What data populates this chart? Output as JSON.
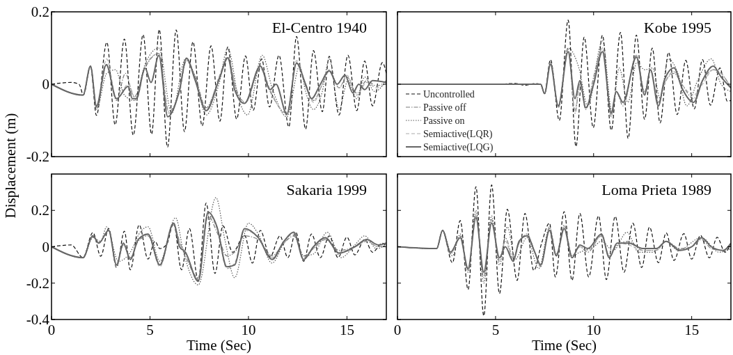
{
  "chart_data": [
    {
      "type": "line",
      "title": "El-Centro 1940",
      "ylabel": "Displacement (m)",
      "xlim": [
        0,
        17
      ],
      "ylim": [
        -0.2,
        0.2
      ],
      "xticks": [
        0,
        5,
        10,
        15
      ],
      "yticks": [
        -0.2,
        0,
        0.2
      ],
      "tick_labels": "y",
      "legend": false,
      "grid": false,
      "series": [
        {
          "color": "#111111",
          "line_style": "dashed",
          "x": [
            0,
            1.0,
            1.4,
            1.62,
            1.98,
            2.28,
            2.81,
            3.23,
            3.7,
            4.15,
            4.65,
            5.08,
            5.47,
            5.89,
            6.33,
            6.75,
            7.18,
            7.65,
            8.1,
            8.55,
            8.95,
            9.4,
            9.85,
            10.24,
            10.67,
            11.07,
            11.55,
            12.05,
            12.44,
            12.9,
            13.3,
            13.75,
            14.1,
            14.6,
            15.05,
            15.5,
            15.9,
            16.3,
            16.8,
            17
          ],
          "values": [
            0,
            0.005,
            0,
            -0.03,
            0.05,
            -0.086,
            0.116,
            -0.112,
            0.125,
            -0.141,
            0.137,
            -0.138,
            0.151,
            -0.174,
            0.15,
            -0.131,
            0.117,
            -0.115,
            0.106,
            -0.102,
            0.103,
            -0.096,
            0.078,
            -0.072,
            0.07,
            -0.063,
            0.08,
            -0.118,
            0.132,
            -0.124,
            0.093,
            -0.076,
            0.077,
            -0.085,
            0.08,
            -0.073,
            0.064,
            -0.06,
            0.06,
            0.03
          ]
        },
        {
          "color": "#7a7a7a",
          "line_style": "dashdot",
          "x": [
            0,
            1.6,
            1.98,
            2.28,
            2.8,
            3.3,
            3.75,
            4.2,
            4.75,
            5.45,
            5.95,
            6.5,
            6.85,
            7.3,
            7.85,
            8.5,
            8.95,
            9.4,
            9.85,
            10.6,
            11.1,
            11.95,
            12.44,
            12.9,
            13.3,
            13.75,
            14.1,
            14.6,
            15.0,
            15.5,
            16.0,
            16.5,
            17
          ],
          "values": [
            0,
            -0.03,
            0.05,
            -0.07,
            0.055,
            -0.045,
            0.03,
            -0.035,
            0.045,
            0.085,
            -0.075,
            -0.02,
            0.065,
            0.02,
            -0.065,
            0.015,
            0.07,
            -0.02,
            -0.05,
            0.045,
            -0.02,
            -0.08,
            0.06,
            -0.005,
            -0.045,
            0.0,
            0.04,
            -0.01,
            0.02,
            -0.025,
            0.01,
            -0.005,
            0.01
          ]
        },
        {
          "color": "#555555",
          "line_style": "dotted",
          "x": [
            0,
            1.6,
            1.98,
            2.3,
            2.8,
            3.25,
            3.7,
            4.2,
            4.75,
            5.45,
            6.1,
            6.8,
            7.3,
            7.85,
            8.5,
            8.95,
            9.5,
            9.95,
            10.7,
            11.2,
            11.95,
            12.6,
            12.9,
            13.3,
            13.75,
            14.1,
            14.6,
            15.05,
            15.5,
            15.9,
            16.4,
            17
          ],
          "values": [
            0,
            -0.03,
            0.05,
            -0.065,
            0.03,
            0.04,
            -0.03,
            -0.045,
            0.055,
            0.1,
            -0.08,
            0.07,
            0.02,
            -0.085,
            0,
            0.1,
            -0.04,
            -0.085,
            0.08,
            -0.01,
            -0.09,
            0.05,
            -0.02,
            -0.07,
            -0.02,
            0.07,
            -0.07,
            0.01,
            -0.04,
            0.02,
            -0.02,
            0.01
          ]
        },
        {
          "color": "#aaaaaa",
          "line_style": "dashed",
          "x": [
            0,
            1.6,
            1.98,
            2.28,
            2.8,
            3.3,
            3.9,
            4.3,
            4.75,
            5.45,
            5.95,
            6.5,
            6.85,
            7.3,
            7.85,
            8.5,
            8.95,
            9.4,
            9.85,
            10.6,
            11.1,
            11.95,
            12.44,
            12.9,
            13.3,
            13.75,
            14.1,
            14.6,
            15.0,
            15.5,
            16.0,
            16.5,
            17
          ],
          "values": [
            0,
            -0.03,
            0.05,
            -0.065,
            0.07,
            -0.04,
            0.0,
            -0.045,
            0.05,
            0.085,
            -0.08,
            -0.02,
            0.07,
            0.015,
            -0.07,
            0.02,
            0.075,
            -0.015,
            -0.05,
            0.05,
            -0.015,
            -0.085,
            0.065,
            0.0,
            -0.05,
            0.0,
            0.035,
            -0.01,
            0.025,
            -0.03,
            0.005,
            -0.01,
            0.005
          ]
        },
        {
          "color": "#666666",
          "line_style": "solid",
          "x": [
            0,
            1.6,
            1.98,
            2.28,
            2.78,
            3.3,
            3.9,
            4.1,
            4.3,
            4.75,
            5.05,
            5.45,
            5.9,
            6.5,
            6.85,
            7.3,
            7.85,
            8.55,
            8.95,
            9.3,
            9.8,
            10.6,
            11.1,
            11.4,
            11.95,
            12.44,
            12.9,
            13.2,
            13.65,
            14.1,
            14.5,
            14.9,
            15.3,
            15.6,
            15.9,
            16.3,
            17
          ],
          "values": [
            0,
            -0.03,
            0.05,
            -0.06,
            0.054,
            -0.04,
            -0.006,
            -0.04,
            -0.04,
            0.044,
            0.005,
            0.08,
            -0.09,
            -0.015,
            0.072,
            0.01,
            -0.073,
            0.02,
            0.073,
            -0.015,
            -0.053,
            0.05,
            -0.015,
            0,
            -0.083,
            0.058,
            0,
            -0.04,
            0,
            0.037,
            0,
            0.025,
            -0.024,
            0,
            -0.015,
            0.01,
            0.005
          ]
        }
      ]
    },
    {
      "type": "line",
      "title": "Kobe 1995",
      "xlim": [
        0,
        17
      ],
      "ylim": [
        -0.2,
        0.2
      ],
      "xticks": [
        0,
        5,
        10,
        15
      ],
      "yticks": [
        -0.2,
        0,
        0.2
      ],
      "tick_labels": false,
      "legend": "bottom left",
      "grid": false,
      "series": [
        {
          "name": "Uncontrolled",
          "color": "#111111",
          "line_style": "dashed",
          "x": [
            0,
            5,
            6,
            6.5,
            7,
            7.3,
            7.5,
            7.8,
            8.25,
            8.7,
            9.1,
            9.52,
            9.98,
            10.45,
            10.9,
            11.37,
            11.76,
            12.18,
            12.6,
            12.99,
            13.39,
            13.82,
            14.26,
            14.7,
            15.13,
            15.55,
            15.96,
            16.44,
            16.82,
            17
          ],
          "values": [
            0,
            0,
            0.002,
            -0.003,
            0.002,
            0,
            -0.026,
            0.068,
            -0.1,
            0.177,
            -0.172,
            0.13,
            -0.12,
            0.135,
            -0.127,
            0.143,
            -0.15,
            0.136,
            -0.097,
            0.1,
            -0.107,
            0.088,
            -0.084,
            0.066,
            -0.068,
            0.068,
            -0.058,
            0.045,
            -0.047,
            -0.045
          ]
        },
        {
          "name": "Passive off",
          "color": "#7a7a7a",
          "line_style": "dashdot",
          "x": [
            0,
            7.3,
            7.5,
            7.8,
            8.2,
            8.7,
            9.05,
            9.3,
            9.6,
            10.0,
            10.45,
            10.9,
            11.15,
            11.5,
            12.18,
            12.6,
            12.9,
            13.3,
            13.6,
            14.1,
            14.5,
            15.1,
            15.55,
            16.1,
            16.5,
            17
          ],
          "values": [
            0,
            0,
            -0.026,
            0.06,
            -0.065,
            0.1,
            -0.08,
            0.0,
            -0.07,
            0.02,
            0.1,
            -0.09,
            -0.02,
            -0.06,
            0.08,
            -0.02,
            0.04,
            -0.05,
            0.0,
            0.03,
            0.0,
            -0.04,
            0.01,
            0.04,
            0.03,
            -0.01
          ]
        },
        {
          "name": "Passive on",
          "color": "#555555",
          "line_style": "dotted",
          "x": [
            0,
            7.3,
            7.5,
            7.8,
            8.2,
            8.7,
            9.25,
            9.7,
            10.45,
            10.95,
            11.3,
            11.75,
            12.2,
            12.6,
            13.0,
            13.4,
            13.8,
            14.3,
            14.75,
            15.3,
            16.0,
            16.5,
            17
          ],
          "values": [
            0,
            0,
            -0.026,
            0.06,
            -0.06,
            0.1,
            0.045,
            -0.06,
            0.12,
            -0.08,
            0.045,
            -0.05,
            0.06,
            0.04,
            0.045,
            -0.04,
            0.07,
            0.03,
            -0.06,
            0.01,
            0.07,
            0.0,
            -0.02
          ]
        },
        {
          "name": "Semiactive(LQR)",
          "color": "#aaaaaa",
          "line_style": "dashed",
          "x": [
            0,
            7.3,
            7.5,
            7.8,
            8.2,
            8.7,
            9.05,
            9.3,
            9.6,
            10.0,
            10.45,
            10.9,
            11.15,
            11.5,
            12.18,
            12.6,
            12.9,
            13.3,
            13.6,
            14.1,
            14.5,
            15.1,
            15.55,
            16.1,
            16.5,
            17
          ],
          "values": [
            0,
            0,
            -0.026,
            0.06,
            -0.06,
            0.095,
            -0.07,
            0.0,
            -0.065,
            0.01,
            0.1,
            -0.085,
            -0.02,
            -0.055,
            0.08,
            -0.025,
            0.04,
            -0.05,
            0.0,
            0.035,
            0.0,
            -0.03,
            0.0,
            0.04,
            0.03,
            -0.01
          ]
        },
        {
          "name": "Semiactive(LQG)",
          "color": "#666666",
          "line_style": "solid",
          "x": [
            0,
            7.3,
            7.5,
            7.8,
            8.2,
            8.7,
            9.05,
            9.3,
            9.6,
            10.0,
            10.45,
            10.9,
            11.15,
            11.5,
            12.18,
            12.6,
            12.9,
            13.3,
            13.6,
            14.1,
            14.5,
            15.1,
            15.55,
            16.1,
            16.5,
            17
          ],
          "values": [
            0,
            0,
            -0.026,
            0.055,
            -0.06,
            0.09,
            -0.04,
            0.01,
            -0.065,
            0,
            0.09,
            -0.08,
            -0.02,
            -0.05,
            0.075,
            -0.03,
            0.04,
            -0.06,
            0.01,
            0.045,
            -0.01,
            -0.05,
            0.01,
            0.05,
            0.02,
            -0.01
          ]
        }
      ]
    },
    {
      "type": "line",
      "title": "Sakaria 1999",
      "xlabel": "Time (Sec)",
      "xlim": [
        0,
        17
      ],
      "ylim": [
        -0.4,
        0.4
      ],
      "xticks": [
        0,
        5,
        10,
        15
      ],
      "yticks": [
        -0.4,
        -0.2,
        0,
        0.2
      ],
      "legend": false,
      "grid": false,
      "series": [
        {
          "color": "#111111",
          "line_style": "dashed",
          "x": [
            0,
            1.0,
            1.6,
            2.1,
            2.5,
            2.9,
            3.3,
            3.7,
            4.0,
            4.45,
            4.9,
            5.25,
            5.5,
            5.85,
            6.2,
            6.6,
            7.0,
            7.45,
            7.85,
            8.3,
            8.7,
            9.2,
            9.8,
            10.2,
            10.6,
            11.1,
            11.6,
            12.0,
            12.4,
            12.8,
            13.2,
            13.65,
            14.1,
            14.55,
            15.0,
            15.4,
            15.9,
            16.3,
            16.8,
            17
          ],
          "values": [
            0,
            0.01,
            -0.06,
            0.078,
            -0.052,
            0.1,
            -0.114,
            0.086,
            -0.127,
            0.12,
            -0.068,
            0.03,
            -0.01,
            0.013,
            0.13,
            -0.127,
            0.1,
            -0.185,
            0.24,
            -0.147,
            0.115,
            -0.03,
            0.063,
            -0.09,
            0.09,
            -0.055,
            0.06,
            -0.06,
            0.08,
            -0.08,
            0.07,
            -0.06,
            0.06,
            -0.06,
            0.053,
            -0.045,
            0.04,
            -0.03,
            0.02,
            0
          ]
        },
        {
          "color": "#7a7a7a",
          "line_style": "dashdot",
          "x": [
            0,
            1.6,
            2.1,
            2.4,
            2.9,
            3.3,
            3.65,
            4.0,
            4.4,
            4.9,
            5.5,
            6.2,
            6.5,
            6.8,
            7.45,
            7.95,
            8.4,
            8.9,
            9.3,
            9.8,
            10.5,
            11.2,
            11.8,
            12.3,
            12.8,
            13.3,
            13.9,
            14.6,
            15.4,
            16.0,
            16.6,
            17
          ],
          "values": [
            0,
            -0.06,
            0.055,
            0.02,
            0.09,
            -0.1,
            0.01,
            -0.06,
            0.03,
            0.06,
            -0.1,
            0.12,
            0.03,
            -0.05,
            -0.17,
            0.17,
            0.08,
            -0.05,
            -0.03,
            0.06,
            0.04,
            -0.05,
            0.02,
            0.06,
            -0.05,
            -0.01,
            0.04,
            -0.02,
            0.0,
            0.03,
            0.0,
            0.01
          ]
        },
        {
          "color": "#555555",
          "line_style": "dotted",
          "x": [
            0,
            1.6,
            2.1,
            2.5,
            2.8,
            3.4,
            4.0,
            4.5,
            4.9,
            5.5,
            6.3,
            6.7,
            7.45,
            8.35,
            8.8,
            9.3,
            10.0,
            10.5,
            11.2,
            11.8,
            12.3,
            12.8,
            13.3,
            14.0,
            14.7,
            15.4,
            15.9,
            16.5,
            17
          ],
          "values": [
            0,
            -0.06,
            0.05,
            0.03,
            0.11,
            -0.08,
            -0.03,
            0.08,
            0.11,
            -0.08,
            0.16,
            -0.03,
            -0.21,
            0.27,
            0.04,
            -0.17,
            0.13,
            0.07,
            -0.09,
            0.02,
            0.08,
            -0.05,
            -0.04,
            0.08,
            -0.06,
            0.01,
            0.06,
            -0.01,
            0.01
          ]
        },
        {
          "color": "#aaaaaa",
          "line_style": "dashed",
          "x": [
            0,
            1.6,
            2.1,
            2.4,
            2.9,
            3.3,
            3.65,
            4.0,
            4.4,
            4.9,
            5.5,
            6.2,
            6.5,
            6.8,
            7.45,
            7.95,
            8.4,
            8.9,
            9.3,
            9.8,
            10.5,
            11.2,
            11.8,
            12.3,
            12.8,
            13.3,
            13.9,
            14.6,
            15.4,
            16.0,
            16.6,
            17
          ],
          "values": [
            0,
            -0.06,
            0.06,
            0.025,
            0.09,
            -0.11,
            0.015,
            -0.065,
            0.04,
            0.065,
            -0.11,
            0.13,
            0.02,
            -0.03,
            -0.18,
            0.18,
            0.1,
            -0.12,
            -0.09,
            0.09,
            0.05,
            -0.06,
            0.03,
            0.07,
            -0.06,
            -0.01,
            0.05,
            -0.03,
            0.0,
            0.03,
            0.0,
            0.01
          ]
        },
        {
          "color": "#666666",
          "line_style": "solid",
          "x": [
            0,
            1.6,
            2.1,
            2.4,
            2.9,
            3.3,
            3.65,
            4.0,
            4.4,
            4.9,
            5.5,
            6.2,
            6.5,
            6.8,
            7.45,
            7.95,
            8.4,
            8.9,
            9.3,
            9.8,
            10.5,
            11.2,
            11.8,
            12.3,
            12.8,
            13.3,
            13.9,
            14.6,
            15.4,
            16.0,
            16.6,
            17
          ],
          "values": [
            0,
            -0.06,
            0.06,
            0.02,
            0.09,
            -0.1,
            0.02,
            -0.07,
            0.04,
            0.07,
            -0.1,
            0.13,
            0.0,
            -0.03,
            -0.19,
            0.19,
            0.11,
            -0.11,
            -0.1,
            0.1,
            0.05,
            -0.07,
            0.03,
            0.08,
            -0.07,
            0.0,
            0.05,
            -0.035,
            0.0,
            0.04,
            0.01,
            0.02
          ]
        }
      ]
    },
    {
      "type": "line",
      "title": "Loma Prieta 1989",
      "xlabel": "Time (Sec)",
      "xlim": [
        0,
        17
      ],
      "ylim": [
        -0.4,
        0.4
      ],
      "xticks": [
        0,
        5,
        10,
        15
      ],
      "yticks": [
        -0.4,
        -0.2,
        0,
        0.2
      ],
      "tick_labels": "x",
      "legend": false,
      "grid": false,
      "series": [
        {
          "color": "#111111",
          "line_style": "dashed",
          "x": [
            0,
            2.0,
            2.3,
            2.8,
            3.2,
            3.6,
            4.0,
            4.4,
            4.8,
            5.2,
            5.6,
            6.1,
            6.5,
            6.95,
            7.35,
            7.75,
            8.05,
            8.5,
            8.9,
            9.3,
            9.75,
            10.25,
            10.65,
            11.1,
            11.55,
            12.0,
            12.45,
            12.85,
            13.3,
            13.7,
            14.1,
            14.6,
            15.0,
            15.45,
            15.9,
            16.3,
            16.7,
            17
          ],
          "values": [
            0,
            -0.01,
            0.09,
            -0.088,
            0.144,
            -0.235,
            0.33,
            -0.38,
            0.34,
            -0.258,
            0.206,
            -0.185,
            0.183,
            -0.13,
            0.02,
            0.13,
            -0.166,
            0.193,
            -0.185,
            0.183,
            -0.166,
            0.17,
            -0.18,
            0.167,
            -0.14,
            0.13,
            -0.114,
            0.108,
            -0.088,
            0.076,
            -0.075,
            0.072,
            -0.068,
            0.063,
            -0.061,
            0.052,
            -0.03,
            0.02
          ]
        },
        {
          "color": "#7a7a7a",
          "line_style": "dashdot",
          "x": [
            0,
            2.0,
            2.3,
            2.7,
            3.2,
            3.6,
            4.0,
            4.4,
            4.8,
            5.2,
            5.5,
            5.9,
            6.2,
            6.6,
            7.0,
            7.3,
            7.75,
            8.1,
            8.5,
            8.9,
            9.3,
            9.7,
            10.4,
            10.8,
            11.2,
            11.8,
            12.5,
            13.2,
            13.7,
            14.4,
            15.0,
            15.5,
            16.0,
            16.6,
            17
          ],
          "values": [
            0,
            -0.01,
            0.09,
            -0.04,
            0.06,
            -0.13,
            0.18,
            -0.17,
            0.15,
            -0.08,
            0.05,
            -0.06,
            0.02,
            0.07,
            -0.03,
            -0.11,
            0.11,
            -0.04,
            0.12,
            -0.05,
            0.0,
            -0.03,
            0.06,
            -0.05,
            0.01,
            0.03,
            -0.02,
            -0.02,
            0.03,
            -0.01,
            0.0,
            0.04,
            -0.01,
            -0.02,
            0.01
          ]
        },
        {
          "color": "#555555",
          "line_style": "dotted",
          "x": [
            0,
            2.0,
            2.3,
            2.8,
            3.2,
            3.6,
            4.0,
            4.4,
            4.8,
            5.2,
            5.6,
            6.0,
            6.6,
            7.2,
            7.75,
            8.1,
            8.5,
            8.9,
            9.3,
            10.0,
            10.4,
            11.0,
            11.7,
            12.3,
            13.0,
            13.7,
            14.3,
            15.5,
            16.4,
            17
          ],
          "values": [
            0,
            -0.01,
            0.09,
            -0.05,
            0.07,
            -0.14,
            0.2,
            -0.2,
            0.17,
            -0.1,
            0.11,
            -0.07,
            0.05,
            -0.12,
            0.1,
            -0.05,
            0.1,
            -0.05,
            -0.03,
            0.0,
            0.03,
            -0.02,
            0.08,
            -0.03,
            -0.03,
            0.03,
            -0.02,
            0.05,
            -0.03,
            -0.01
          ]
        },
        {
          "color": "#aaaaaa",
          "line_style": "dashed",
          "x": [
            0,
            2.0,
            2.3,
            2.7,
            3.2,
            3.6,
            4.0,
            4.4,
            4.8,
            5.2,
            5.5,
            5.9,
            6.2,
            6.6,
            7.0,
            7.3,
            7.75,
            8.1,
            8.5,
            8.9,
            9.3,
            9.7,
            10.4,
            10.8,
            11.2,
            11.8,
            12.5,
            13.2,
            13.7,
            14.4,
            15.0,
            15.5,
            16.0,
            16.6,
            17
          ],
          "values": [
            0,
            -0.01,
            0.09,
            -0.035,
            0.05,
            -0.13,
            0.17,
            -0.15,
            0.14,
            -0.07,
            0.03,
            -0.07,
            0.02,
            0.07,
            -0.03,
            -0.11,
            0.1,
            -0.05,
            0.11,
            -0.05,
            0.0,
            -0.02,
            0.06,
            -0.05,
            0.02,
            0.01,
            -0.02,
            -0.02,
            0.03,
            -0.015,
            0.0,
            0.05,
            0.0,
            -0.02,
            0.02
          ]
        },
        {
          "color": "#666666",
          "line_style": "solid",
          "x": [
            0,
            2.0,
            2.3,
            2.7,
            3.2,
            3.6,
            4.0,
            4.4,
            4.8,
            5.2,
            5.5,
            5.9,
            6.2,
            6.6,
            7.0,
            7.3,
            7.75,
            8.1,
            8.5,
            8.9,
            9.3,
            9.7,
            10.4,
            10.8,
            11.2,
            11.8,
            12.5,
            13.2,
            13.7,
            14.4,
            15.0,
            15.5,
            16.0,
            16.6,
            17
          ],
          "values": [
            0,
            -0.01,
            0.09,
            -0.03,
            0.05,
            -0.12,
            0.16,
            -0.14,
            0.13,
            -0.06,
            0.0,
            -0.08,
            0.03,
            0.06,
            -0.03,
            -0.1,
            0.09,
            -0.05,
            0.1,
            -0.06,
            0.01,
            -0.01,
            0.07,
            -0.06,
            0.02,
            0.02,
            -0.01,
            -0.01,
            0.03,
            -0.02,
            0.0,
            0.05,
            0.0,
            -0.02,
            0.02
          ]
        }
      ]
    }
  ]
}
